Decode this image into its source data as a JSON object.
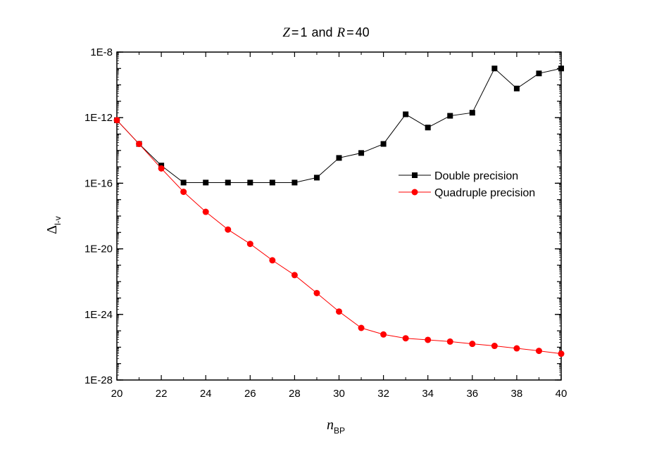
{
  "chart_data": {
    "type": "line",
    "title": {
      "z_var": "Z",
      "z_val": "1",
      "joiner": "and",
      "r_var": "R",
      "r_val": "40"
    },
    "xlabel": {
      "main": "n",
      "sub": "BP"
    },
    "ylabel": {
      "main": "Δ",
      "sub": "l-v"
    },
    "xlim": [
      20,
      40
    ],
    "ylim_log10": [
      -28,
      -8
    ],
    "y_scale": "log",
    "x_ticks": [
      20,
      22,
      24,
      26,
      28,
      30,
      32,
      34,
      36,
      38,
      40
    ],
    "y_ticks": [
      {
        "exp": -8,
        "label": "1E-8"
      },
      {
        "exp": -12,
        "label": "1E-12"
      },
      {
        "exp": -16,
        "label": "1E-16"
      },
      {
        "exp": -20,
        "label": "1E-20"
      },
      {
        "exp": -24,
        "label": "1E-24"
      },
      {
        "exp": -28,
        "label": "1E-28"
      }
    ],
    "grid": false,
    "legend_position": "right-middle",
    "series": [
      {
        "name": "Double precision",
        "color": "#000000",
        "marker": "square",
        "x": [
          20,
          21,
          22,
          23,
          24,
          25,
          26,
          27,
          28,
          29,
          30,
          31,
          32,
          33,
          34,
          35,
          36,
          37,
          38,
          39,
          40
        ],
        "y": [
          7e-13,
          2.5e-14,
          1.2e-15,
          1.1e-16,
          1.1e-16,
          1.1e-16,
          1.1e-16,
          1.1e-16,
          1.1e-16,
          2.2e-16,
          3.5e-15,
          7e-15,
          2.5e-14,
          1.6e-12,
          2.5e-13,
          1.3e-12,
          2e-12,
          1e-09,
          6e-11,
          5e-10,
          1e-09
        ]
      },
      {
        "name": "Quadruple precision",
        "color": "#ff0000",
        "marker": "circle",
        "x": [
          20,
          21,
          22,
          23,
          24,
          25,
          26,
          27,
          28,
          29,
          30,
          31,
          32,
          33,
          34,
          35,
          36,
          37,
          38,
          39,
          40
        ],
        "y": [
          7e-13,
          2.5e-14,
          8e-16,
          3e-17,
          1.8e-18,
          1.5e-19,
          2e-20,
          2e-21,
          2.5e-22,
          2e-23,
          1.5e-24,
          1.5e-25,
          6e-26,
          3.5e-26,
          2.8e-26,
          2.2e-26,
          1.6e-26,
          1.2e-26,
          8.5e-27,
          6e-27,
          4e-27
        ]
      }
    ]
  }
}
